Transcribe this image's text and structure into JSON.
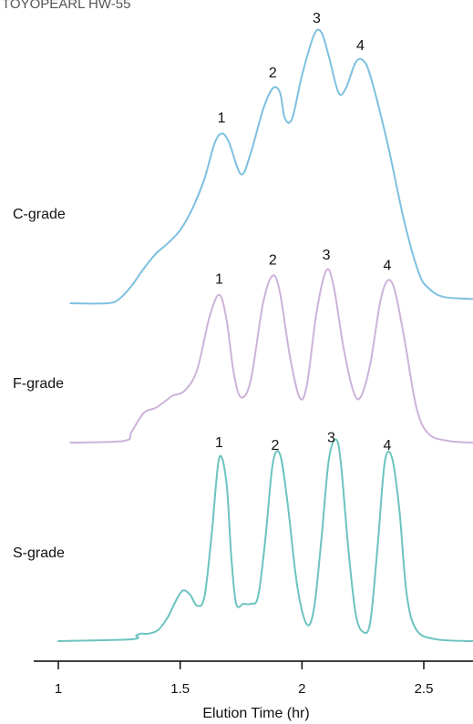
{
  "chart_data": {
    "type": "line",
    "title": "TOYOPEARL HW-55",
    "xlabel": "Elution Time (hr)",
    "ylabel": "",
    "xlim": [
      1.0,
      2.7
    ],
    "x_ticks": [
      {
        "value": 1.0,
        "label": "1"
      },
      {
        "value": 1.5,
        "label": "1.5"
      },
      {
        "value": 2.0,
        "label": "2"
      },
      {
        "value": 2.5,
        "label": "2.5"
      }
    ],
    "grid": false,
    "legend": "none",
    "series": [
      {
        "name": "C-grade",
        "color": "#7ec0e0",
        "points": [
          [
            1.05,
            0.0
          ],
          [
            1.2,
            0.0
          ],
          [
            1.25,
            0.02
          ],
          [
            1.3,
            0.08
          ],
          [
            1.35,
            0.16
          ],
          [
            1.4,
            0.23
          ],
          [
            1.45,
            0.28
          ],
          [
            1.5,
            0.34
          ],
          [
            1.55,
            0.44
          ],
          [
            1.6,
            0.58
          ],
          [
            1.64,
            0.74
          ],
          [
            1.67,
            0.79
          ],
          [
            1.7,
            0.75
          ],
          [
            1.75,
            0.6
          ],
          [
            1.79,
            0.7
          ],
          [
            1.84,
            0.9
          ],
          [
            1.88,
            1.0
          ],
          [
            1.91,
            0.98
          ],
          [
            1.93,
            0.86
          ],
          [
            1.96,
            0.86
          ],
          [
            2.0,
            1.06
          ],
          [
            2.05,
            1.25
          ],
          [
            2.08,
            1.26
          ],
          [
            2.11,
            1.15
          ],
          [
            2.15,
            0.98
          ],
          [
            2.18,
            1.0
          ],
          [
            2.22,
            1.12
          ],
          [
            2.25,
            1.13
          ],
          [
            2.28,
            1.06
          ],
          [
            2.35,
            0.75
          ],
          [
            2.42,
            0.38
          ],
          [
            2.48,
            0.14
          ],
          [
            2.52,
            0.07
          ],
          [
            2.58,
            0.03
          ],
          [
            2.7,
            0.02
          ]
        ],
        "peak_labels": [
          {
            "text": "1",
            "x": 1.67
          },
          {
            "text": "2",
            "x": 1.88
          },
          {
            "text": "3",
            "x": 2.06
          },
          {
            "text": "4",
            "x": 2.24
          }
        ]
      },
      {
        "name": "F-grade",
        "color": "#cdb3d9",
        "points": [
          [
            1.05,
            0.0
          ],
          [
            1.27,
            0.01
          ],
          [
            1.3,
            0.06
          ],
          [
            1.35,
            0.17
          ],
          [
            1.4,
            0.2
          ],
          [
            1.44,
            0.24
          ],
          [
            1.47,
            0.27
          ],
          [
            1.52,
            0.3
          ],
          [
            1.57,
            0.42
          ],
          [
            1.62,
            0.72
          ],
          [
            1.66,
            0.85
          ],
          [
            1.69,
            0.71
          ],
          [
            1.72,
            0.4
          ],
          [
            1.75,
            0.26
          ],
          [
            1.79,
            0.36
          ],
          [
            1.84,
            0.8
          ],
          [
            1.88,
            0.96
          ],
          [
            1.91,
            0.86
          ],
          [
            1.95,
            0.5
          ],
          [
            1.99,
            0.26
          ],
          [
            2.02,
            0.33
          ],
          [
            2.06,
            0.75
          ],
          [
            2.1,
            0.99
          ],
          [
            2.13,
            0.9
          ],
          [
            2.17,
            0.55
          ],
          [
            2.21,
            0.3
          ],
          [
            2.24,
            0.26
          ],
          [
            2.28,
            0.45
          ],
          [
            2.32,
            0.8
          ],
          [
            2.35,
            0.93
          ],
          [
            2.38,
            0.88
          ],
          [
            2.42,
            0.6
          ],
          [
            2.47,
            0.2
          ],
          [
            2.52,
            0.05
          ],
          [
            2.6,
            0.01
          ],
          [
            2.7,
            0.0
          ]
        ],
        "peak_labels": [
          {
            "text": "1",
            "x": 1.66
          },
          {
            "text": "2",
            "x": 1.88
          },
          {
            "text": "3",
            "x": 2.1
          },
          {
            "text": "4",
            "x": 2.35
          }
        ]
      },
      {
        "name": "S-grade",
        "color": "#6cc3bf",
        "points": [
          [
            1.0,
            0.0
          ],
          [
            1.3,
            0.01
          ],
          [
            1.32,
            0.03
          ],
          [
            1.34,
            0.04
          ],
          [
            1.37,
            0.04
          ],
          [
            1.41,
            0.06
          ],
          [
            1.45,
            0.13
          ],
          [
            1.48,
            0.21
          ],
          [
            1.51,
            0.27
          ],
          [
            1.54,
            0.25
          ],
          [
            1.57,
            0.19
          ],
          [
            1.6,
            0.24
          ],
          [
            1.63,
            0.58
          ],
          [
            1.66,
            0.98
          ],
          [
            1.69,
            0.85
          ],
          [
            1.71,
            0.45
          ],
          [
            1.73,
            0.2
          ],
          [
            1.76,
            0.2
          ],
          [
            1.79,
            0.2
          ],
          [
            1.82,
            0.24
          ],
          [
            1.85,
            0.55
          ],
          [
            1.88,
            0.95
          ],
          [
            1.91,
            1.0
          ],
          [
            1.94,
            0.75
          ],
          [
            1.98,
            0.3
          ],
          [
            2.02,
            0.09
          ],
          [
            2.05,
            0.18
          ],
          [
            2.08,
            0.55
          ],
          [
            2.11,
            0.97
          ],
          [
            2.14,
            1.08
          ],
          [
            2.16,
            0.95
          ],
          [
            2.19,
            0.5
          ],
          [
            2.22,
            0.15
          ],
          [
            2.25,
            0.05
          ],
          [
            2.28,
            0.1
          ],
          [
            2.31,
            0.5
          ],
          [
            2.34,
            0.96
          ],
          [
            2.37,
            0.98
          ],
          [
            2.4,
            0.7
          ],
          [
            2.43,
            0.25
          ],
          [
            2.47,
            0.06
          ],
          [
            2.55,
            0.01
          ],
          [
            2.7,
            0.0
          ]
        ],
        "peak_labels": [
          {
            "text": "1",
            "x": 1.66
          },
          {
            "text": "2",
            "x": 1.89
          },
          {
            "text": "3",
            "x": 2.12
          },
          {
            "text": "4",
            "x": 2.35
          }
        ]
      }
    ]
  }
}
